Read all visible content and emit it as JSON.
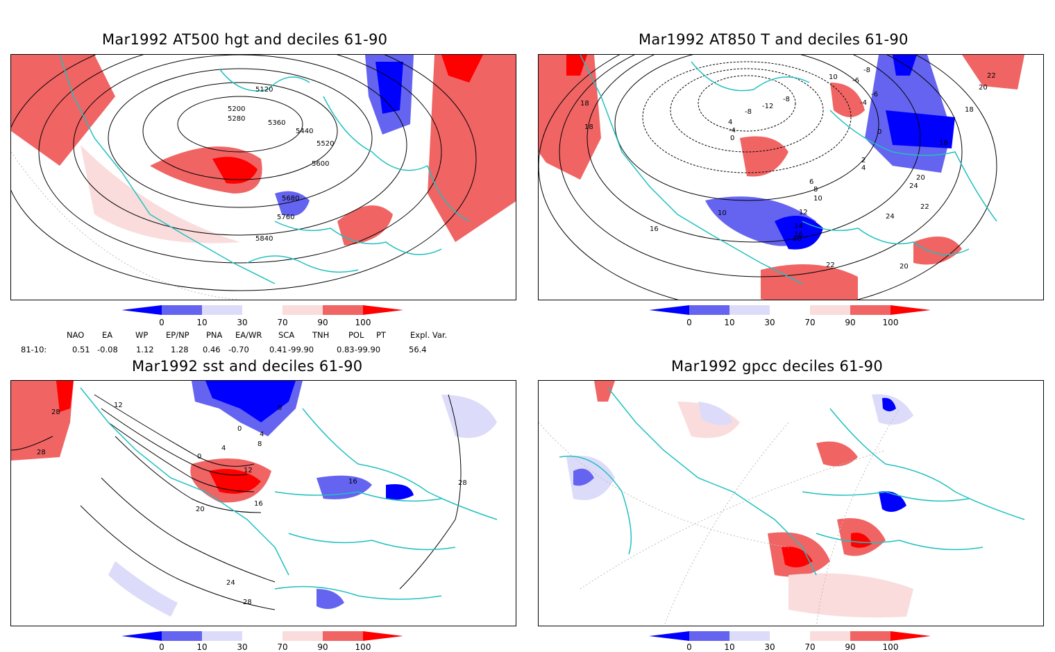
{
  "panels": [
    {
      "title": "Mar1992 AT500 hgt and deciles 61-90",
      "contour_labels": [
        "5120",
        "5200",
        "5280",
        "5360",
        "5440",
        "5520",
        "5600",
        "5680",
        "5760",
        "5840"
      ]
    },
    {
      "title": "Mar1992 AT850 T and deciles 61-90",
      "contour_labels": [
        "18",
        "18",
        "16",
        "10",
        "-8",
        "-12",
        "-8",
        "-4",
        "0",
        "4",
        "-6",
        "-4",
        "0",
        "2",
        "4",
        "6",
        "8",
        "10",
        "12",
        "14",
        "16",
        "18",
        "18",
        "20",
        "22",
        "24",
        "24",
        "22",
        "20",
        "10",
        "-8",
        "-6",
        "22",
        "20",
        "18"
      ]
    },
    {
      "title": "Mar1992 sst and deciles 61-90",
      "contour_labels": [
        "28",
        "28",
        "12",
        "0",
        "0",
        "4",
        "8",
        "4",
        "0",
        "12",
        "16",
        "20",
        "24",
        "28",
        "28",
        "16"
      ]
    },
    {
      "title": "Mar1992 gpcc deciles 61-90",
      "contour_labels": []
    }
  ],
  "colorbar": {
    "labels": [
      "0",
      "10",
      "30",
      "70",
      "90",
      "100"
    ],
    "colors": [
      "#0000ff",
      "#6464f0",
      "#dcdcfa",
      "#ffffff",
      "#fadcdc",
      "#f06464",
      "#ff0000"
    ]
  },
  "indices": {
    "headers": [
      "NAO",
      "EA",
      "WP",
      "EP/NP",
      "PNA",
      "EA/WR",
      "SCA",
      "TNH",
      "POL",
      "PT",
      "Expl. Var."
    ],
    "row_label": "81-10:",
    "values": [
      "0.51",
      "-0.08",
      "1.12",
      "1.28",
      "0.46",
      "-0.70",
      "0.41",
      "-99.90",
      "0.83",
      "-99.90",
      "56.4"
    ]
  },
  "colors": {
    "coastline": "#20c0c0",
    "contour": "#000000"
  }
}
